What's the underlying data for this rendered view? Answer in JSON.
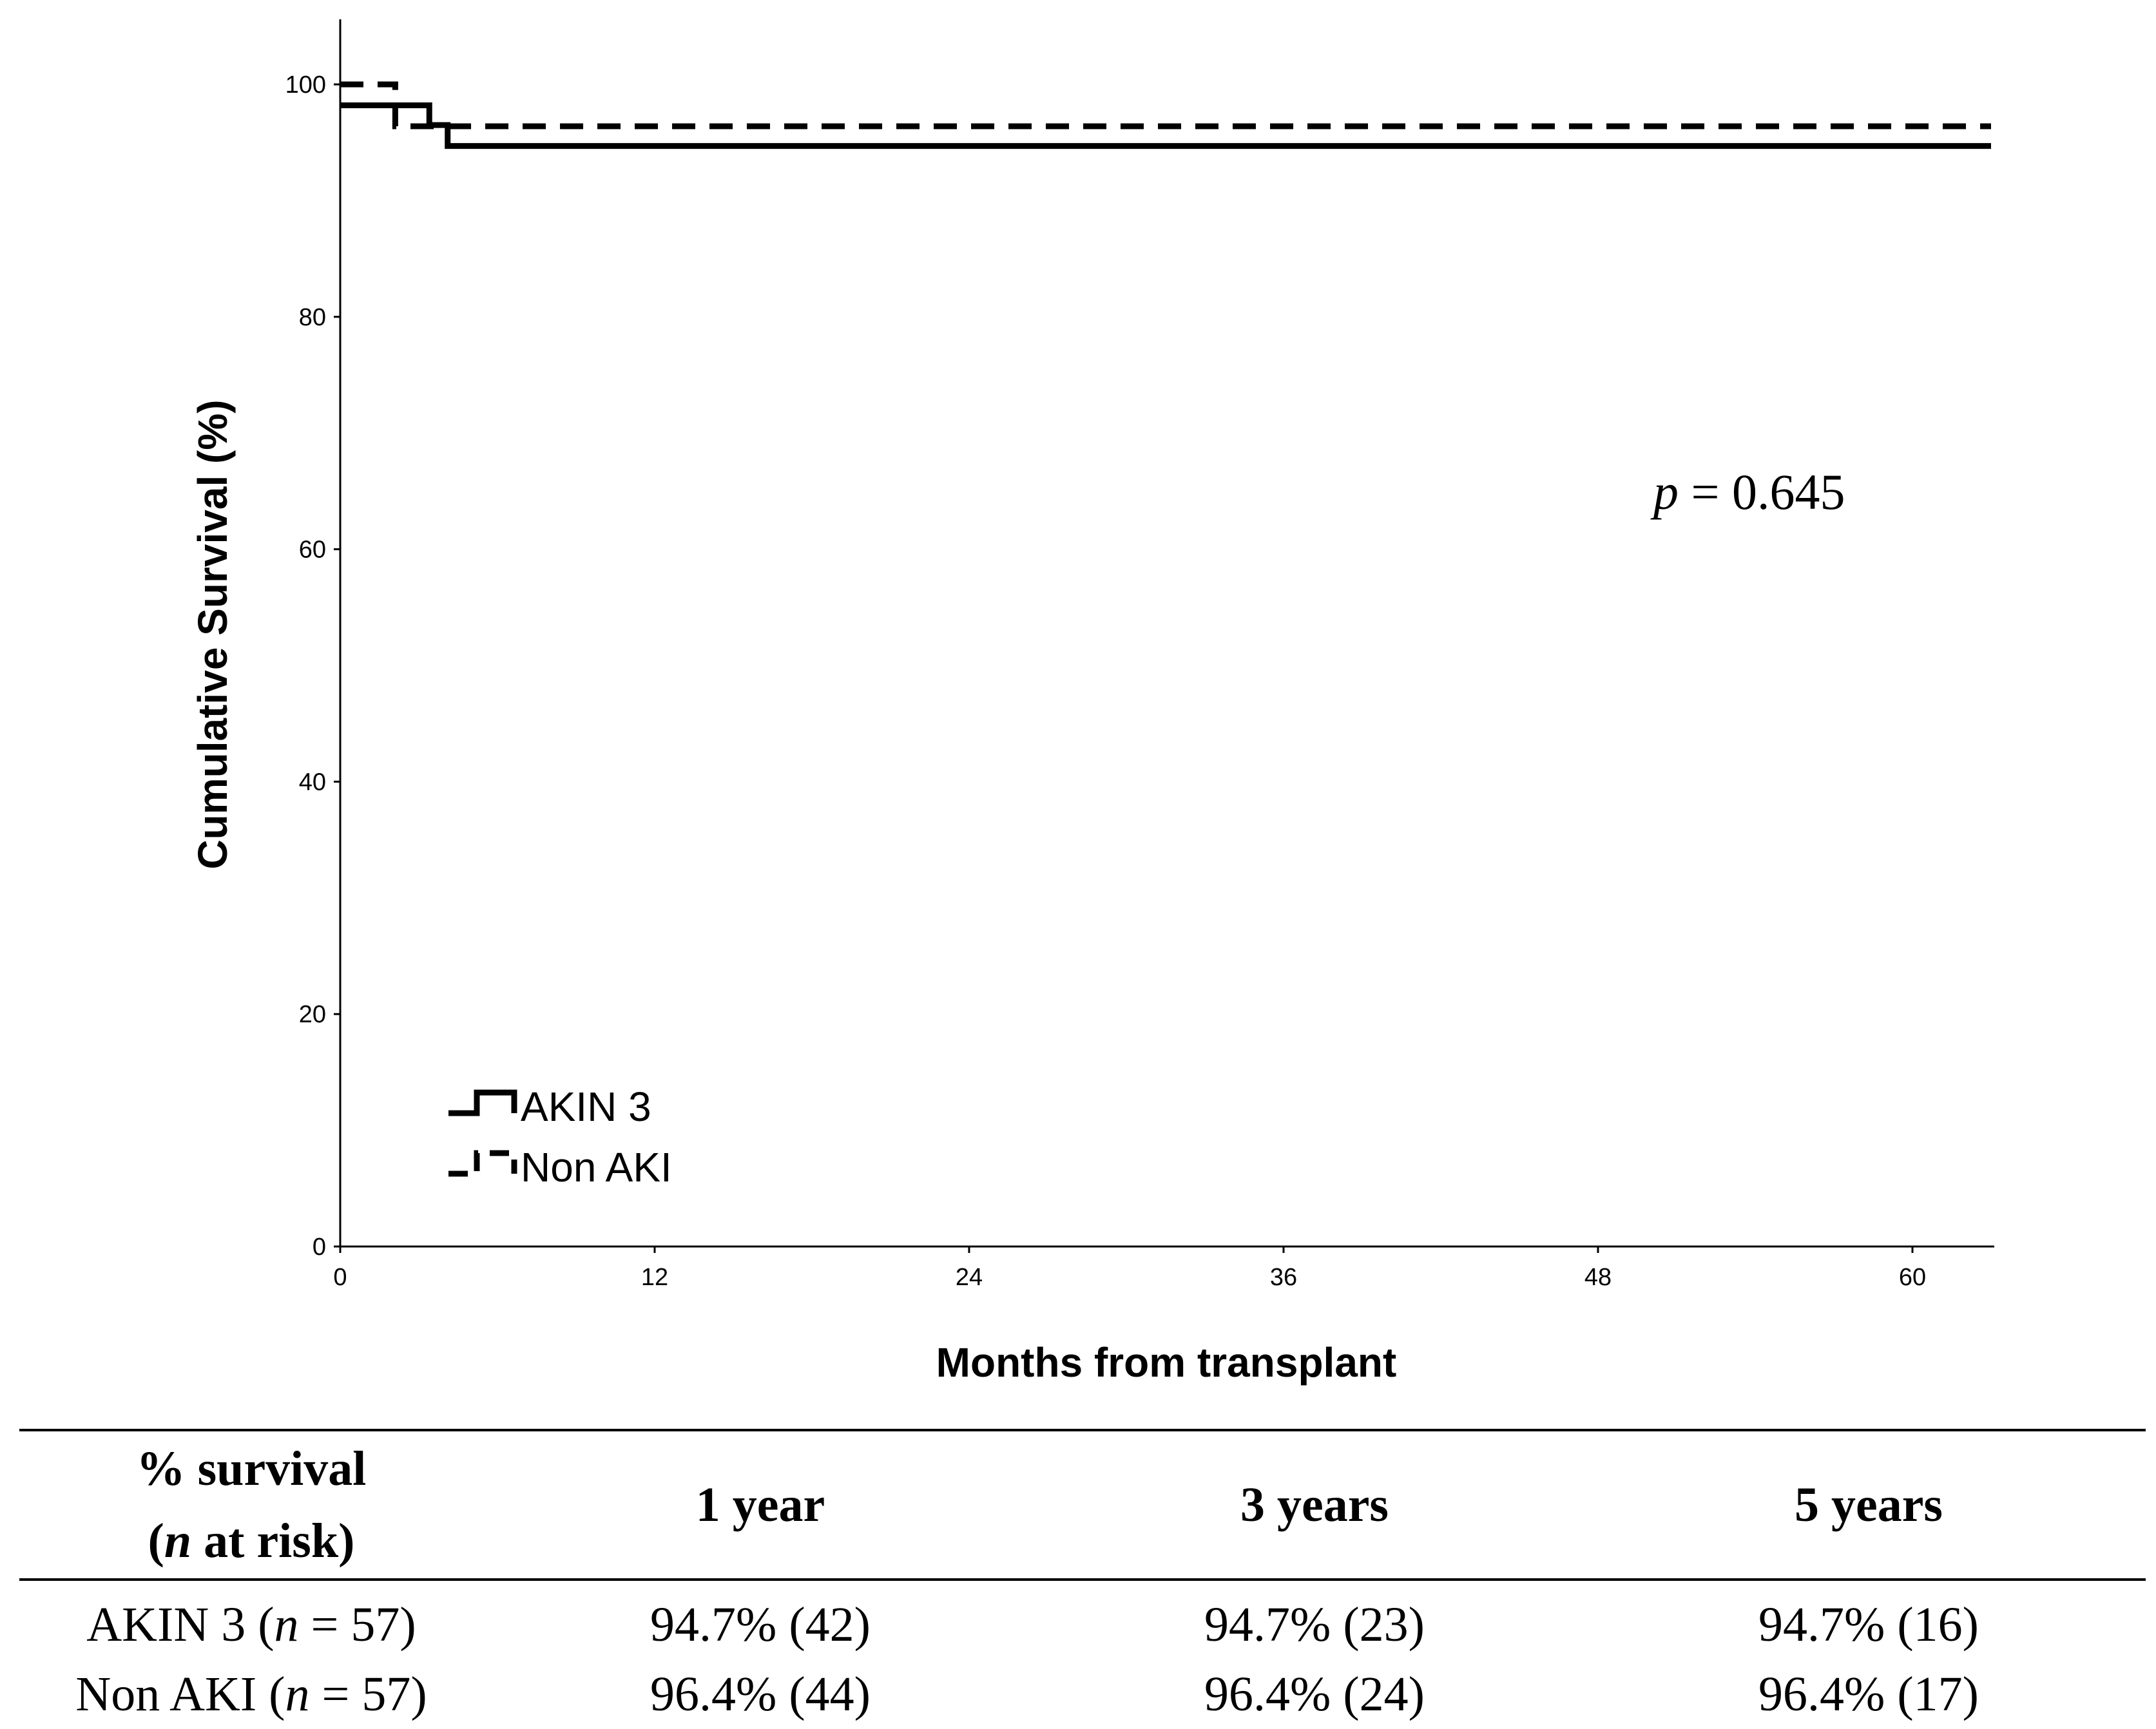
{
  "chart_data": {
    "type": "line",
    "title": "",
    "xlabel": "Months from transplant",
    "ylabel": "Cumulative Survival (%)",
    "xlim": [
      0,
      63
    ],
    "ylim": [
      0,
      105
    ],
    "xticks": [
      0,
      12,
      24,
      36,
      48,
      60
    ],
    "yticks": [
      0,
      20,
      40,
      60,
      80,
      100
    ],
    "grid": false,
    "legend_position": "bottom-left",
    "annotation": {
      "italic": "p",
      "text": " = 0.645"
    },
    "series": [
      {
        "name": "AKIN 3",
        "style": "solid",
        "x": [
          0,
          3.4,
          3.4,
          4.1,
          4.1,
          63
        ],
        "y": [
          98.2,
          98.2,
          96.5,
          96.5,
          94.7,
          94.7
        ]
      },
      {
        "name": "Non AKI",
        "style": "dashed",
        "x": [
          0,
          2.1,
          2.1,
          63
        ],
        "y": [
          100,
          100,
          96.4,
          96.4
        ]
      }
    ]
  },
  "table": {
    "header": {
      "col0_line1": "% survival",
      "col0_line2_italic": "n",
      "col0_line2_rest": " at risk)",
      "col0_line2_open": "(",
      "col1": "1 year",
      "col2": "3 years",
      "col3": "5 years"
    },
    "rows": [
      {
        "label_pre": "AKIN 3 (",
        "label_italic": "n",
        "label_post": " = 57)",
        "v1": "94.7% (42)",
        "v2": "94.7% (23)",
        "v3": "94.7% (16)"
      },
      {
        "label_pre": "Non AKI (",
        "label_italic": "n",
        "label_post": " = 57)",
        "v1": "96.4% (44)",
        "v2": "96.4% (24)",
        "v3": "96.4% (17)"
      }
    ]
  }
}
